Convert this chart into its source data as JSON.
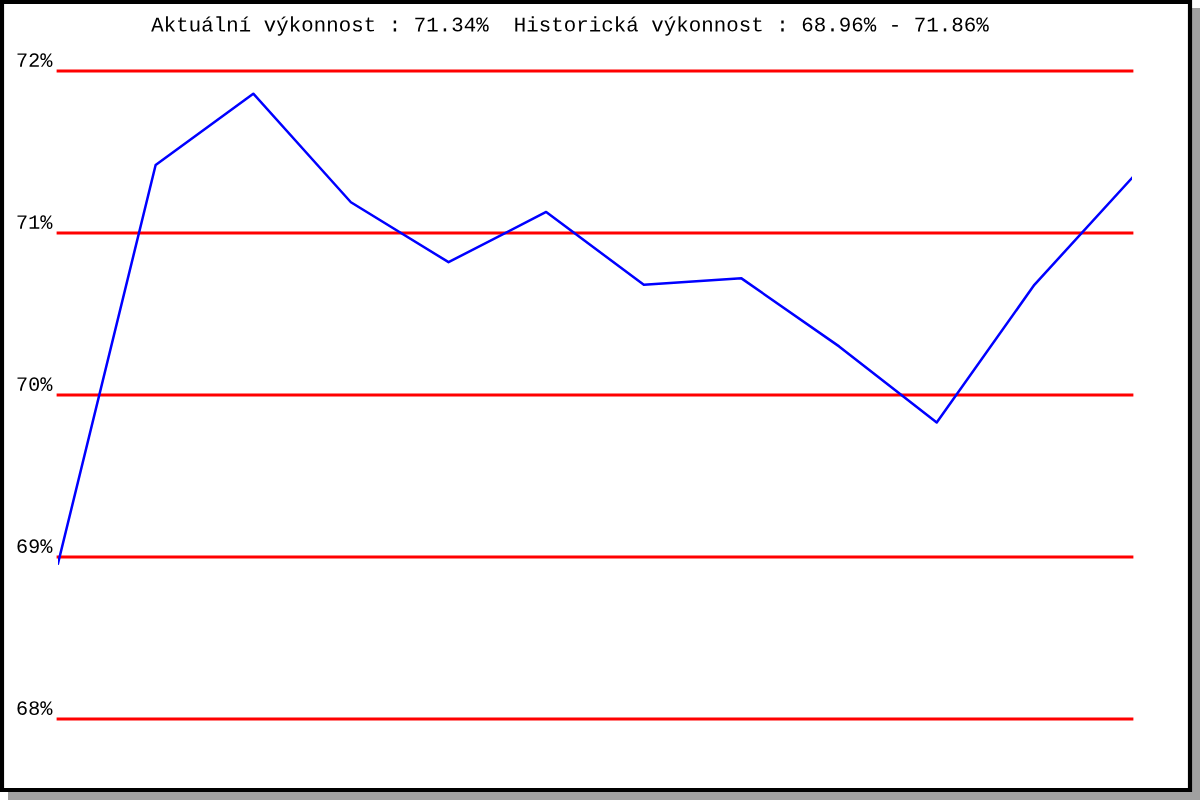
{
  "chart_data": {
    "type": "line",
    "title": "Aktuální výkonnost : 71.34%  Historická výkonnost : 68.96% - 71.86%",
    "categories": [
      null,
      null,
      null,
      null,
      null,
      null,
      null,
      null,
      null,
      null,
      null,
      null
    ],
    "series": [
      {
        "color": "#0000ff",
        "values": [
          68.96,
          71.42,
          71.86,
          71.19,
          70.82,
          71.13,
          70.68,
          70.72,
          70.3,
          69.83,
          70.68,
          71.34
        ]
      }
    ],
    "ylim": [
      68,
      72
    ],
    "yticks": [
      {
        "value": 68,
        "label": "68%"
      },
      {
        "value": 69,
        "label": "69%"
      },
      {
        "value": 70,
        "label": "70%"
      },
      {
        "value": 71,
        "label": "71%"
      },
      {
        "value": 72,
        "label": "72%"
      }
    ],
    "grid": "y",
    "tick_labels": "y",
    "marker": "none",
    "line_style": "solid"
  }
}
